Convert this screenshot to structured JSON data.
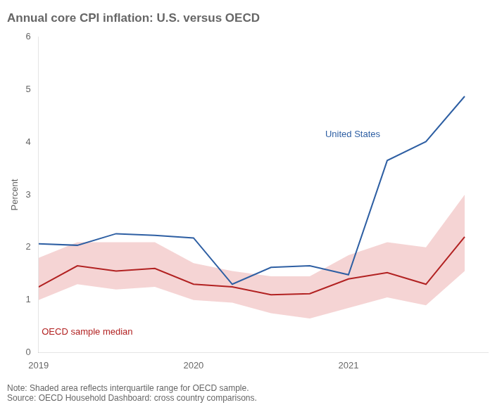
{
  "chart_data": {
    "type": "line",
    "title": "Annual core CPI inflation: U.S. versus OECD",
    "ylabel": "Percent",
    "notes": [
      "Note: Shaded area reflects interquartile range for OECD sample.",
      "Source: OECD Household Dashboard: cross country comparisons."
    ],
    "x": [
      2019.0,
      2019.25,
      2019.5,
      2019.75,
      2020.0,
      2020.25,
      2020.5,
      2020.75,
      2021.0,
      2021.25,
      2021.5,
      2021.75
    ],
    "xlim": [
      2019.0,
      2021.9
    ],
    "xticks": [
      2019,
      2020,
      2021
    ],
    "ylim": [
      0,
      6
    ],
    "yticks": [
      0,
      1,
      2,
      3,
      4,
      5,
      6
    ],
    "grid": false,
    "band": {
      "lower": [
        1.0,
        1.3,
        1.2,
        1.25,
        1.0,
        0.95,
        0.75,
        0.65,
        0.85,
        1.05,
        0.9,
        1.55
      ],
      "upper": [
        1.8,
        2.1,
        2.1,
        2.1,
        1.7,
        1.55,
        1.45,
        1.45,
        1.85,
        2.1,
        2.0,
        3.0
      ],
      "color": "#e8a0a0"
    },
    "series": [
      {
        "name": "United States",
        "color": "#2e5fa3",
        "values": [
          2.07,
          2.04,
          2.26,
          2.23,
          2.18,
          1.3,
          1.62,
          1.65,
          1.48,
          3.65,
          4.01,
          4.87
        ]
      },
      {
        "name": "OECD sample median",
        "color": "#b22222",
        "values": [
          1.25,
          1.65,
          1.55,
          1.6,
          1.3,
          1.25,
          1.1,
          1.12,
          1.4,
          1.52,
          1.3,
          2.2
        ]
      }
    ],
    "annotations": [
      {
        "text": "United States",
        "x": 2020.85,
        "y": 4.05,
        "color": "#2e5fa3"
      },
      {
        "text": "OECD sample median",
        "x": 2019.02,
        "y": 0.3,
        "color": "#b22222"
      }
    ]
  }
}
